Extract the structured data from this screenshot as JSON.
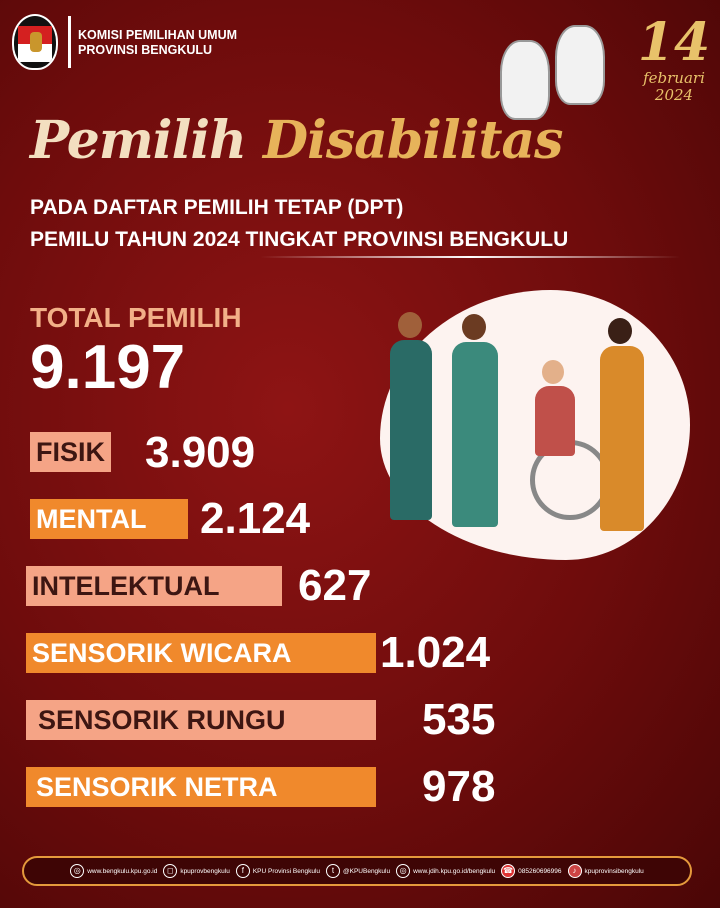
{
  "header": {
    "org_line1": "KOMISI PEMILIHAN UMUM",
    "org_line2": "PROVINSI BENGKULU",
    "logo_text": "KOMISI PEMILIHAN UMUM",
    "date_day": "14",
    "date_month": "februari",
    "date_year": "2024"
  },
  "title": {
    "script_1": "Pemilih",
    "script_2": "Disabilitas",
    "line1": "PADA DAFTAR PEMILIH TETAP (DPT)",
    "line2": "PEMILU TAHUN 2024 TINGKAT PROVINSI BENGKULU"
  },
  "total": {
    "label": "TOTAL PEMILIH",
    "value": "9.197"
  },
  "categories": [
    {
      "label": "FISIK",
      "value": "3.909",
      "color": "#f5a486"
    },
    {
      "label": "MENTAL",
      "value": "2.124",
      "color": "#f0892c"
    },
    {
      "label": "INTELEKTUAL",
      "value": "627",
      "color": "#f5a486"
    },
    {
      "label": "SENSORIK WICARA",
      "value": "1.024",
      "color": "#f0892c"
    },
    {
      "label": "SENSORIK RUNGU",
      "value": "535",
      "color": "#f5a486"
    },
    {
      "label": "SENSORIK NETRA",
      "value": "978",
      "color": "#f0892c"
    }
  ],
  "footer": [
    {
      "icon": "globe-icon",
      "text": "www.bengkulu.kpu.go.id"
    },
    {
      "icon": "instagram-icon",
      "text": "kpuprovbengkulu"
    },
    {
      "icon": "facebook-icon",
      "text": "KPU Provinsi Bengkulu"
    },
    {
      "icon": "twitter-icon",
      "text": "@KPUBengkulu"
    },
    {
      "icon": "globe-icon",
      "text": "www.jdih.kpu.go.id/bengkulu"
    },
    {
      "icon": "phone-icon",
      "text": "085260696996"
    },
    {
      "icon": "tiktok-icon",
      "text": "kpuprovinsibengkulu"
    }
  ]
}
